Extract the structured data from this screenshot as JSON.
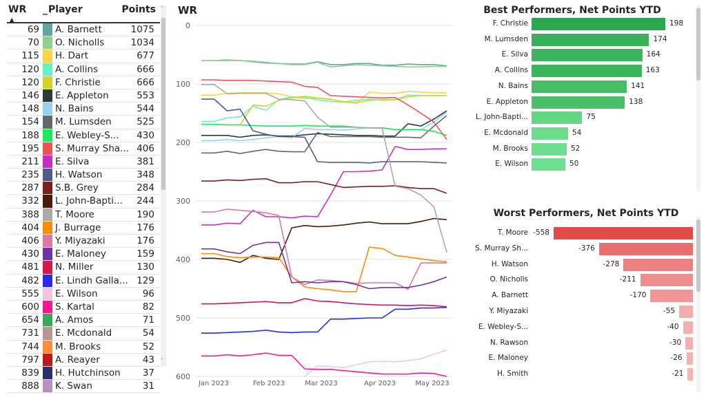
{
  "table": {
    "headers": {
      "wr": "WR",
      "swatch": "_",
      "player": "Player",
      "points": "Points"
    },
    "sort_icon": "sort-ascending-icon",
    "rows": [
      {
        "wr": "69",
        "player": "A. Barnett",
        "points": "1075",
        "color": "#5ea69e"
      },
      {
        "wr": "70",
        "player": "O. Nicholls",
        "points": "1034",
        "color": "#8fcf8f"
      },
      {
        "wr": "115",
        "player": "H. Dart",
        "points": "677",
        "color": "#fdd44a"
      },
      {
        "wr": "120",
        "player": "A. Collins",
        "points": "666",
        "color": "#6af0c8"
      },
      {
        "wr": "120",
        "player": "F. Christie",
        "points": "666",
        "color": "#d4d424"
      },
      {
        "wr": "146",
        "player": "E. Appleton",
        "points": "553",
        "color": "#2b3a3a"
      },
      {
        "wr": "148",
        "player": "N. Bains",
        "points": "544",
        "color": "#96d2f0"
      },
      {
        "wr": "154",
        "player": "M. Lumsden",
        "points": "525",
        "color": "#5f6b68"
      },
      {
        "wr": "188",
        "player": "E. Webley-S...",
        "points": "430",
        "color": "#1aeb5a"
      },
      {
        "wr": "195",
        "player": "S. Murray Sha...",
        "points": "406",
        "color": "#ef5350"
      },
      {
        "wr": "211",
        "player": "E. Silva",
        "points": "381",
        "color": "#c52fc8"
      },
      {
        "wr": "235",
        "player": "H. Watson",
        "points": "348",
        "color": "#4d5c8c"
      },
      {
        "wr": "287",
        "player": "S.B. Grey",
        "points": "284",
        "color": "#7a1e1e"
      },
      {
        "wr": "332",
        "player": "L. John-Bapti...",
        "points": "244",
        "color": "#4a1c08"
      },
      {
        "wr": "388",
        "player": "T. Moore",
        "points": "190",
        "color": "#aaaaaa"
      },
      {
        "wr": "404",
        "player": "J. Burrage",
        "points": "176",
        "color": "#ff8a00"
      },
      {
        "wr": "406",
        "player": "Y. Miyazaki",
        "points": "176",
        "color": "#dc7aa0"
      },
      {
        "wr": "430",
        "player": "E. Maloney",
        "points": "159",
        "color": "#7030a8"
      },
      {
        "wr": "481",
        "player": "N. Miller",
        "points": "130",
        "color": "#d81448"
      },
      {
        "wr": "482",
        "player": "E. Lindh Galla...",
        "points": "129",
        "color": "#2a2ae8"
      },
      {
        "wr": "555",
        "player": "E. Wilson",
        "points": "96",
        "color": "#f5c4de"
      },
      {
        "wr": "600",
        "player": "S. Kartal",
        "points": "82",
        "color": "#ff1493"
      },
      {
        "wr": "654",
        "player": "A. Amos",
        "points": "71",
        "color": "#3aa85a"
      },
      {
        "wr": "731",
        "player": "E. Mcdonald",
        "points": "54",
        "color": "#ba9590"
      },
      {
        "wr": "744",
        "player": "M. Brooks",
        "points": "52",
        "color": "#ff8c3a"
      },
      {
        "wr": "797",
        "player": "A. Reayer",
        "points": "43",
        "color": "#c01818"
      },
      {
        "wr": "839",
        "player": "H. Hutchinson",
        "points": "37",
        "color": "#2a2e6a"
      },
      {
        "wr": "888",
        "player": "K. Swan",
        "points": "31",
        "color": "#b890c0"
      }
    ]
  },
  "chart_data": [
    {
      "type": "line",
      "title": "WR",
      "xlabel": "",
      "ylabel": "",
      "ylim": [
        600,
        0
      ],
      "y_inverted": true,
      "yticks": [
        "0",
        "100",
        "200",
        "300",
        "400",
        "500",
        "600"
      ],
      "xticks": [
        "Jan 2023",
        "Feb 2023",
        "Mar 2023",
        "Apr 2023",
        "May 2023"
      ],
      "grid": true,
      "series": [
        {
          "name": "A. Barnett",
          "color": "#5ea69e",
          "values": [
            60,
            60,
            59,
            60,
            62,
            64,
            65,
            66,
            66,
            62,
            67,
            67,
            65,
            65,
            68,
            68,
            66,
            67,
            67,
            69
          ]
        },
        {
          "name": "O. Nicholls",
          "color": "#8fcf8f",
          "values": [
            60,
            60,
            60,
            60,
            61,
            63,
            65,
            67,
            67,
            63,
            71,
            69,
            67,
            68,
            69,
            70,
            71,
            71,
            70,
            70
          ]
        },
        {
          "name": "H. Dart",
          "color": "#fdd44a",
          "values": [
            119,
            119,
            116,
            115,
            115,
            115,
            117,
            122,
            125,
            124,
            127,
            130,
            133,
            114,
            116,
            116,
            113,
            114,
            115,
            115
          ]
        },
        {
          "name": "A. Collins",
          "color": "#6af0c8",
          "values": [
            164,
            164,
            158,
            156,
            138,
            145,
            127,
            122,
            123,
            127,
            130,
            131,
            128,
            126,
            128,
            127,
            119,
            120,
            120,
            120
          ]
        },
        {
          "name": "F. Christie",
          "color": "#d4d424",
          "values": [
            169,
            169,
            170,
            170,
            136,
            138,
            128,
            124,
            121,
            124,
            126,
            131,
            132,
            128,
            127,
            127,
            122,
            120,
            120,
            120
          ]
        },
        {
          "name": "E. Appleton",
          "color": "#2b3a3a",
          "values": [
            188,
            188,
            188,
            191,
            188,
            187,
            189,
            189,
            187,
            185,
            186,
            187,
            188,
            188,
            189,
            189,
            168,
            172,
            160,
            146
          ]
        },
        {
          "name": "N. Bains",
          "color": "#96d2f0",
          "values": [
            197,
            197,
            195,
            197,
            195,
            192,
            190,
            192,
            176,
            178,
            178,
            179,
            177,
            175,
            175,
            178,
            178,
            178,
            165,
            148
          ]
        },
        {
          "name": "M. Lumsden",
          "color": "#5f6b68",
          "values": [
            218,
            218,
            215,
            219,
            215,
            212,
            215,
            216,
            216,
            183,
            190,
            190,
            190,
            190,
            191,
            191,
            191,
            192,
            172,
            154
          ]
        },
        {
          "name": "E. Webley-S...",
          "color": "#1aeb5a",
          "values": [
            169,
            169,
            170,
            170,
            171,
            172,
            172,
            172,
            171,
            172,
            172,
            172,
            174,
            175,
            175,
            178,
            178,
            178,
            181,
            188
          ]
        },
        {
          "name": "S. Murray Sha...",
          "color": "#ef5350",
          "values": [
            93,
            93,
            94,
            94,
            94,
            95,
            96,
            97,
            104,
            106,
            120,
            121,
            122,
            123,
            124,
            123,
            136,
            150,
            165,
            195
          ]
        },
        {
          "name": "E. Silva",
          "color": "#c52fc8",
          "values": [
            341,
            341,
            338,
            339,
            316,
            327,
            327,
            329,
            326,
            327,
            290,
            250,
            250,
            249,
            247,
            207,
            212,
            212,
            211,
            211
          ]
        },
        {
          "name": "H. Watson",
          "color": "#4d5c8c",
          "values": [
            126,
            126,
            146,
            143,
            180,
            186,
            190,
            190,
            191,
            233,
            234,
            234,
            234,
            235,
            233,
            233,
            233,
            233,
            234,
            235
          ]
        },
        {
          "name": "S.B. Grey",
          "color": "#7a1e1e",
          "values": [
            266,
            266,
            264,
            265,
            263,
            262,
            269,
            269,
            267,
            267,
            272,
            277,
            276,
            275,
            275,
            274,
            277,
            279,
            279,
            287
          ]
        },
        {
          "name": "L. John-Bapti...",
          "color": "#4a1c08",
          "values": [
            398,
            398,
            400,
            405,
            393,
            398,
            400,
            346,
            342,
            344,
            343,
            341,
            338,
            336,
            339,
            339,
            339,
            335,
            330,
            332
          ]
        },
        {
          "name": "T. Moore",
          "color": "#aaaaaa",
          "values": [
            101,
            101,
            117,
            116,
            116,
            116,
            126,
            127,
            129,
            157,
            174,
            174,
            174,
            175,
            176,
            275,
            279,
            290,
            310,
            388
          ]
        },
        {
          "name": "J. Burrage",
          "color": "#ff8a00",
          "values": [
            390,
            390,
            395,
            397,
            396,
            396,
            397,
            430,
            447,
            450,
            452,
            455,
            455,
            379,
            381,
            393,
            396,
            399,
            402,
            404
          ]
        },
        {
          "name": "Y. Miyazaki",
          "color": "#dc7aa0",
          "values": [
            319,
            319,
            314,
            316,
            318,
            320,
            325,
            430,
            443,
            435,
            436,
            438,
            441,
            440,
            440,
            440,
            451,
            406,
            406,
            406
          ]
        },
        {
          "name": "E. Maloney",
          "color": "#7030a8",
          "values": [
            382,
            382,
            387,
            390,
            376,
            371,
            371,
            440,
            438,
            440,
            438,
            438,
            443,
            450,
            448,
            448,
            448,
            444,
            438,
            430
          ]
        },
        {
          "name": "N. Miller",
          "color": "#d81448",
          "values": [
            476,
            476,
            475,
            474,
            473,
            472,
            474,
            474,
            467,
            471,
            472,
            474,
            476,
            477,
            478,
            478,
            479,
            478,
            479,
            481
          ]
        },
        {
          "name": "E. Lindh Galla...",
          "color": "#2a2ae8",
          "values": [
            526,
            526,
            525,
            524,
            523,
            521,
            524,
            525,
            524,
            524,
            502,
            502,
            501,
            500,
            500,
            485,
            485,
            483,
            483,
            482
          ]
        },
        {
          "name": "E. Wilson",
          "color": "#f5c4de",
          "values": [
            null,
            null,
            null,
            null,
            null,
            null,
            null,
            null,
            600,
            582,
            583,
            585,
            580,
            575,
            574,
            575,
            573,
            570,
            562,
            555
          ]
        },
        {
          "name": "S. Kartal",
          "color": "#ff1493",
          "values": [
            565,
            565,
            563,
            565,
            563,
            560,
            564,
            564,
            587,
            588,
            588,
            590,
            592,
            594,
            596,
            596,
            596,
            594,
            595,
            600
          ]
        }
      ]
    },
    {
      "type": "bar",
      "orientation": "horizontal",
      "title": "Best Performers, Net Points YTD",
      "categories": [
        "F. Christie",
        "M. Lumsden",
        "E. Silva",
        "A. Collins",
        "N. Bains",
        "E. Appleton",
        "L. John-Bapti...",
        "E. Mcdonald",
        "M. Brooks",
        "E. Wilson"
      ],
      "values": [
        198,
        174,
        164,
        163,
        141,
        138,
        75,
        54,
        52,
        50
      ],
      "color_scale": [
        "#2ea84d",
        "#6ee08f"
      ]
    },
    {
      "type": "bar",
      "orientation": "horizontal",
      "title": "Worst Performers, Net Points YTD",
      "categories": [
        "T. Moore",
        "S. Murray Sh...",
        "H. Watson",
        "O. Nicholls",
        "A. Barnett",
        "Y. Miyazaki",
        "E. Webley-S...",
        "N. Rawson",
        "E. Maloney",
        "H. Smith"
      ],
      "values": [
        -558,
        -376,
        -278,
        -211,
        -170,
        -55,
        -40,
        -30,
        -26,
        -21
      ],
      "color_scale": [
        "#e34a4a",
        "#f5b3b3"
      ]
    }
  ]
}
